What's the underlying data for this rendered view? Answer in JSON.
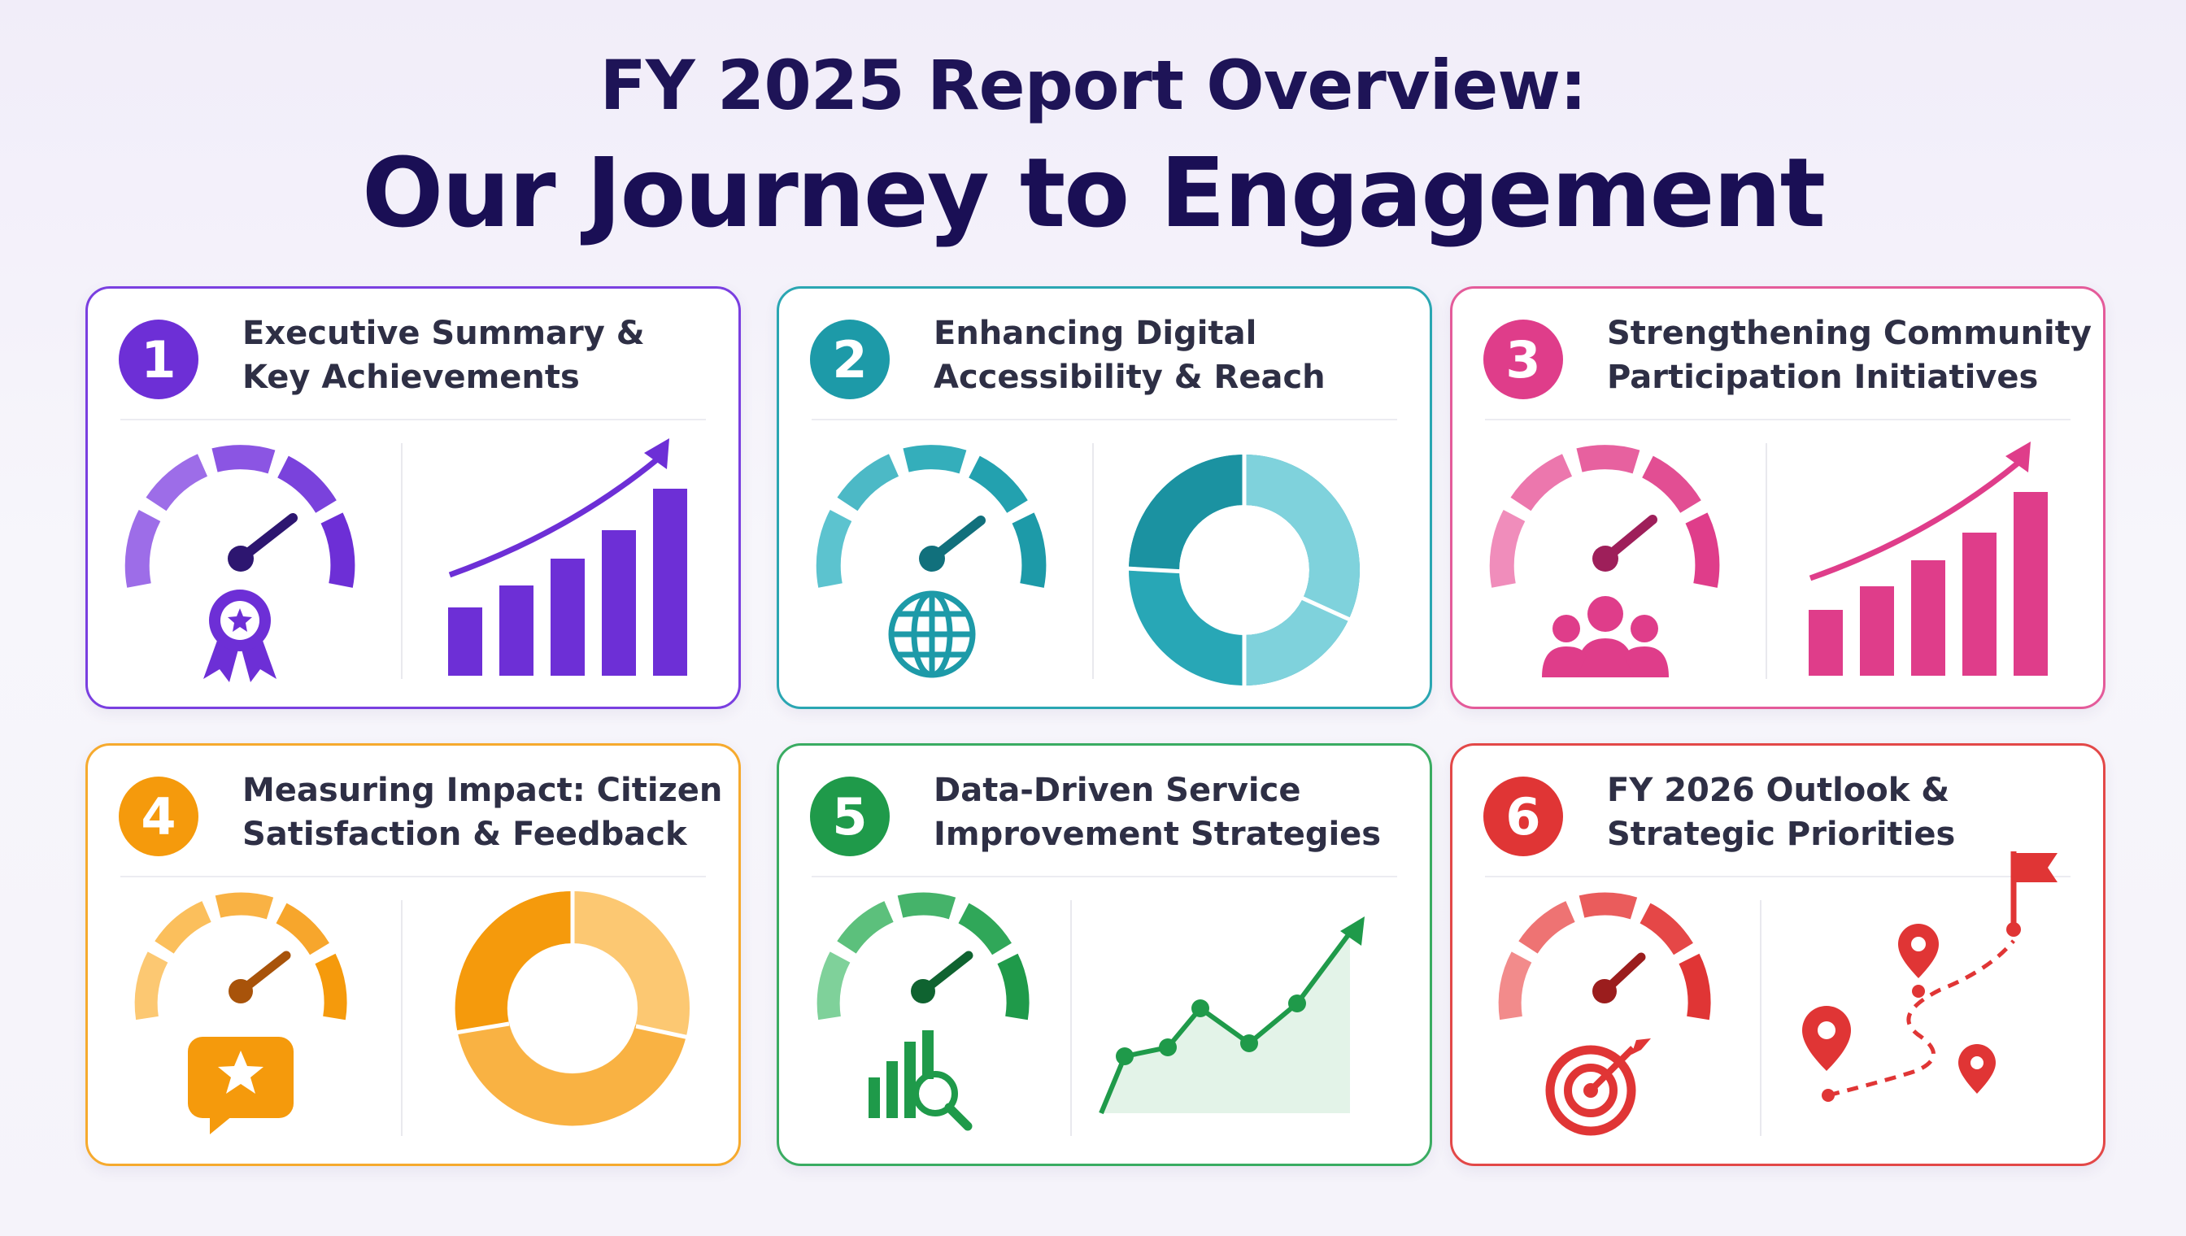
{
  "header": {
    "title_line1": "FY 2025 Report Overview:",
    "title_line2": "Our Journey to Engagement"
  },
  "cards": [
    {
      "number": "1",
      "title": "Executive Summary &\nKey Achievements",
      "color": "#6d2fd6",
      "light": "#9d6de8",
      "icon": "award-ribbon-icon",
      "chart": "rising-bar-chart"
    },
    {
      "number": "2",
      "title": "Enhancing Digital\nAccessibility & Reach",
      "color": "#1d9aa8",
      "light": "#7fd2dc",
      "icon": "globe-icon",
      "chart": "donut-chart"
    },
    {
      "number": "3",
      "title": "Strengthening Community\nParticipation Initiatives",
      "color": "#df3d8a",
      "light": "#f08dbb",
      "icon": "people-group-icon",
      "chart": "rising-bar-chart"
    },
    {
      "number": "4",
      "title": "Measuring Impact: Citizen\nSatisfaction & Feedback",
      "color": "#f59a0c",
      "light": "#fcc872",
      "icon": "star-speech-bubble-icon",
      "chart": "donut-chart"
    },
    {
      "number": "5",
      "title": "Data-Driven Service\nImprovement Strategies",
      "color": "#1f9a4a",
      "light": "#5cc07c",
      "icon": "bar-chart-magnifier-icon",
      "chart": "line-area-chart"
    },
    {
      "number": "6",
      "title": "FY 2026 Outlook &\nStrategic Priorities",
      "color": "#e03535",
      "light": "#ef7070",
      "icon": "target-arrow-icon",
      "chart": "roadmap-pins"
    }
  ]
}
